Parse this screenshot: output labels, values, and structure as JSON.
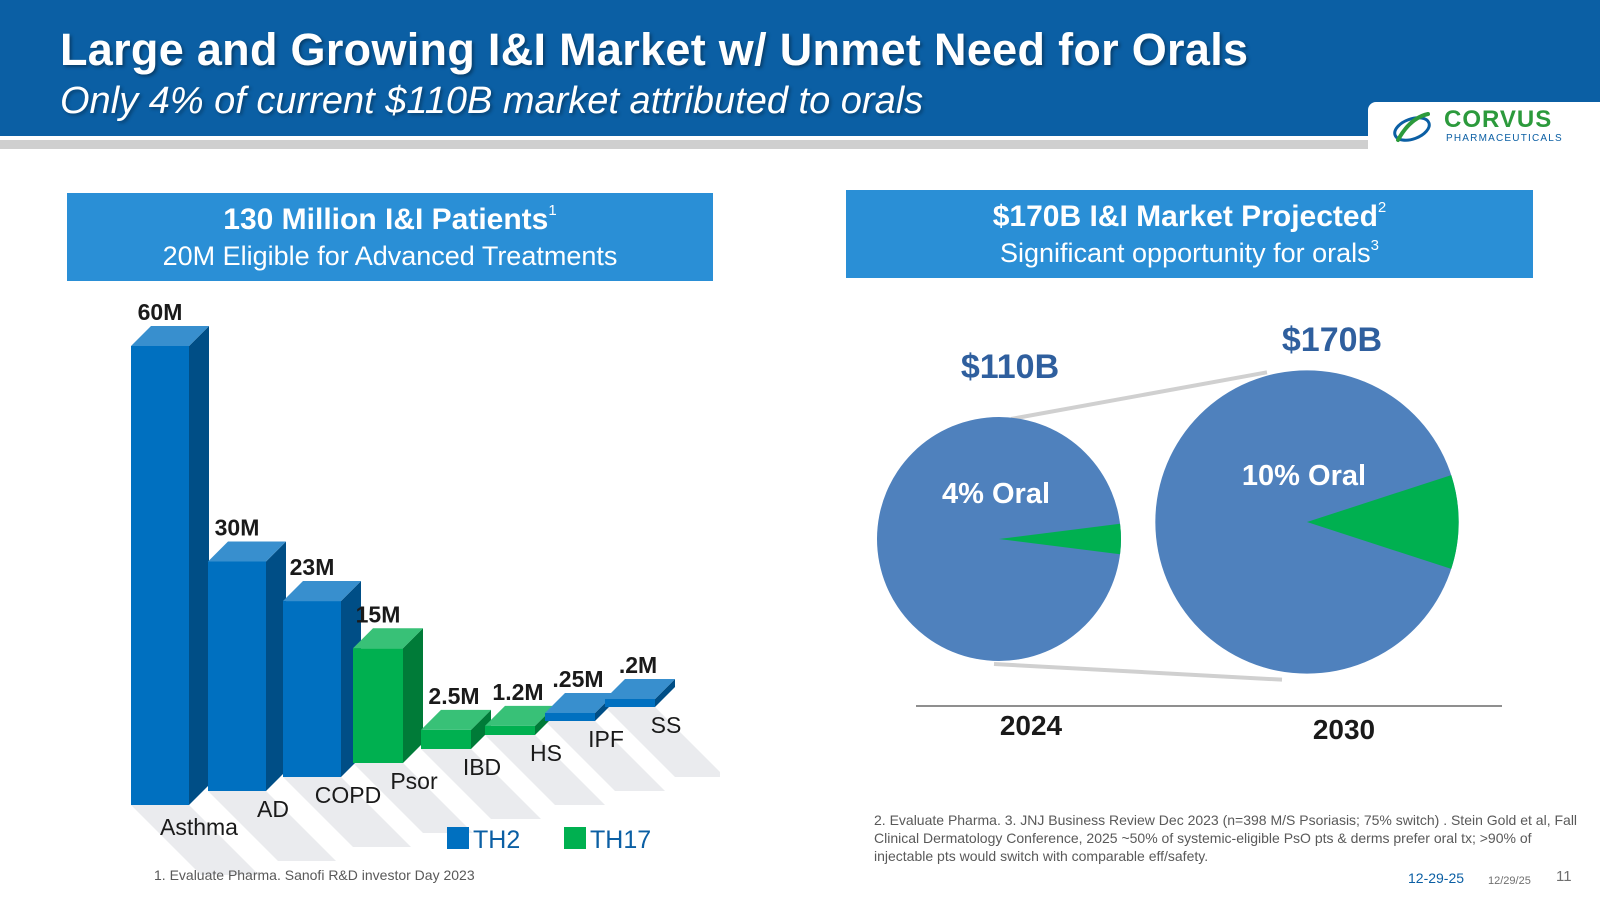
{
  "header": {
    "title": "Large and Growing I&I Market w/ Unmet Need for Orals",
    "subtitle": "Only 4% of current $110B market attributed to orals"
  },
  "logo": {
    "name": "CORVUS",
    "sub": "PHARMACEUTICALS"
  },
  "left_banner": {
    "title": "130 Million I&I Patients",
    "title_sup": "1",
    "subtitle": "20M Eligible for Advanced Treatments"
  },
  "right_banner": {
    "title": "$170B I&I Market Projected",
    "title_sup": "2",
    "subtitle": "Significant opportunity for orals",
    "subtitle_sup": "3"
  },
  "colors": {
    "th2": "#0070c0",
    "th17": "#00b050",
    "pie_blue": "#4f81bd",
    "pie_green": "#00b050",
    "header": "#0b5fa4",
    "banner": "#2a8fd6"
  },
  "chart_data": [
    {
      "type": "bar",
      "categories": [
        "Asthma",
        "AD",
        "COPD",
        "Psor",
        "IBD",
        "HS",
        "IPF",
        "SS"
      ],
      "values": [
        60,
        30,
        23,
        15,
        2.5,
        1.2,
        0.25,
        0.2
      ],
      "unit": "M patients",
      "data_labels": [
        "60M",
        "30M",
        "23M",
        "15M",
        "2.5M",
        "1.2M",
        ".25M",
        ".2M"
      ],
      "groups": [
        "TH2",
        "TH2",
        "TH2",
        "TH17",
        "TH17",
        "TH17",
        "TH2",
        "TH2"
      ],
      "legend": [
        {
          "name": "TH2",
          "color": "#0070c0"
        },
        {
          "name": "TH17",
          "color": "#00b050"
        }
      ],
      "legend_position": "bottom-right"
    },
    {
      "type": "pie",
      "pies": [
        {
          "year": "2024",
          "total_label": "$110B",
          "total": 110,
          "oral_pct": 4,
          "oral_label": "4%  Oral"
        },
        {
          "year": "2030",
          "total_label": "$170B",
          "total": 170,
          "oral_pct": 10,
          "oral_label": "10%  Oral"
        }
      ]
    }
  ],
  "footnotes": {
    "left": "1.  Evaluate Pharma.  Sanofi R&D investor Day 2023",
    "right": "2.  Evaluate Pharma.   3.  JNJ Business Review Dec 2023 (n=398 M/S Psoriasis; 75% switch) . Stein Gold et al, Fall Clinical Dermatology Conference, 2025 ~50% of systemic-eligible PsO pts & derms prefer oral tx; >90% of injectable pts would switch with comparable eff/safety."
  },
  "footer": {
    "date": "12-29-25",
    "date_small": "12/29/25",
    "page": "11"
  }
}
